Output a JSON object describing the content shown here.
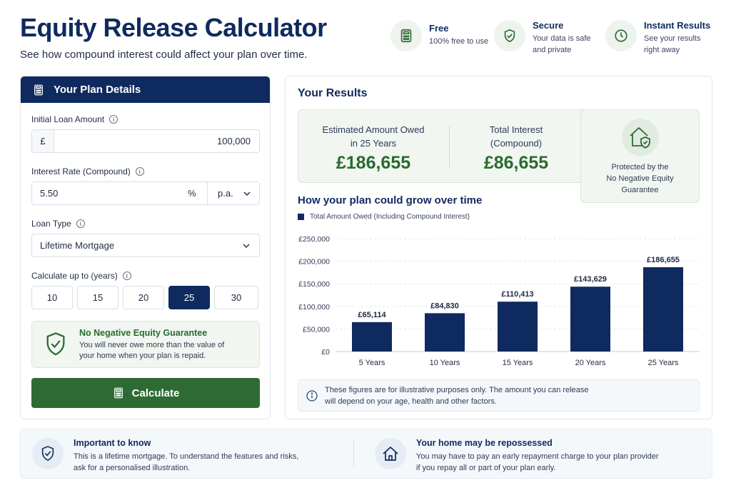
{
  "header": {
    "title": "Equity Release Calculator",
    "subtitle": "See how compound interest could affect your plan over time."
  },
  "features": [
    {
      "icon": "calculator-icon",
      "title": "Free",
      "desc_lines": [
        "100% free to use"
      ]
    },
    {
      "icon": "shield-check-icon",
      "title": "Secure",
      "desc_lines": [
        "Your data is safe",
        "and private"
      ]
    },
    {
      "icon": "clock-icon",
      "title": "Instant Results",
      "desc_lines": [
        "See your results",
        "right away"
      ]
    }
  ],
  "plan": {
    "title": "Your Plan Details",
    "loan": {
      "label": "Initial Loan Amount",
      "prefix": "£",
      "value": "100,000"
    },
    "rate": {
      "label": "Interest Rate (Compound)",
      "value": "5.50",
      "unit": "%",
      "period": "p.a."
    },
    "loan_type": {
      "label": "Loan Type",
      "value": "Lifetime Mortgage"
    },
    "years": {
      "label": "Calculate up to (years)",
      "options": [
        "10",
        "15",
        "20",
        "25",
        "30"
      ],
      "selected": "25"
    },
    "guarantee": {
      "title": "No Negative Equity Guarantee",
      "text_lines": [
        "You will never owe more than the value of",
        "your home when your plan is repaid."
      ]
    },
    "calculate_label": "Calculate"
  },
  "results": {
    "title": "Your Results",
    "owed": {
      "label_lines": [
        "Estimated Amount Owed",
        "in 25 Years"
      ],
      "value": "£186,655"
    },
    "interest": {
      "label_lines": [
        "Total Interest",
        "(Compound)"
      ],
      "value": "£86,655"
    },
    "protected_lines": [
      "Protected by the",
      "No Negative Equity",
      "Guarantee"
    ],
    "chart_title": "How your plan could grow over time",
    "note_lines": [
      "These figures are for illustrative purposes only. The amount you can release",
      "will depend on your age, health and other factors."
    ]
  },
  "chart_data": {
    "type": "bar",
    "categories": [
      "5 Years",
      "10 Years",
      "15 Years",
      "20 Years",
      "25 Years"
    ],
    "series": [
      {
        "name": "Total Amount Owed (Including Compound Interest)",
        "values": [
          65114,
          84830,
          110413,
          143629,
          186655
        ],
        "labels": [
          "£65,114",
          "£84,830",
          "£110,413",
          "£143,629",
          "£186,655"
        ]
      }
    ],
    "yticks": [
      "£0",
      "£50,000",
      "£100,000",
      "£150,000",
      "£200,000",
      "£250,000"
    ],
    "ylim": [
      0,
      250000
    ],
    "grid": true,
    "legend": "top-left",
    "bar_color": "#0f2a5e"
  },
  "bottom": [
    {
      "icon": "shield-check-icon",
      "title": "Important to know",
      "text_lines": [
        "This is a lifetime mortgage. To understand the features and risks,",
        "ask for a personalised illustration."
      ]
    },
    {
      "icon": "home-icon",
      "title": "Your home may be repossessed",
      "text_lines": [
        "You may have to pay an early repayment charge to your plan provider",
        "if you repay all or part of your plan early."
      ]
    }
  ]
}
